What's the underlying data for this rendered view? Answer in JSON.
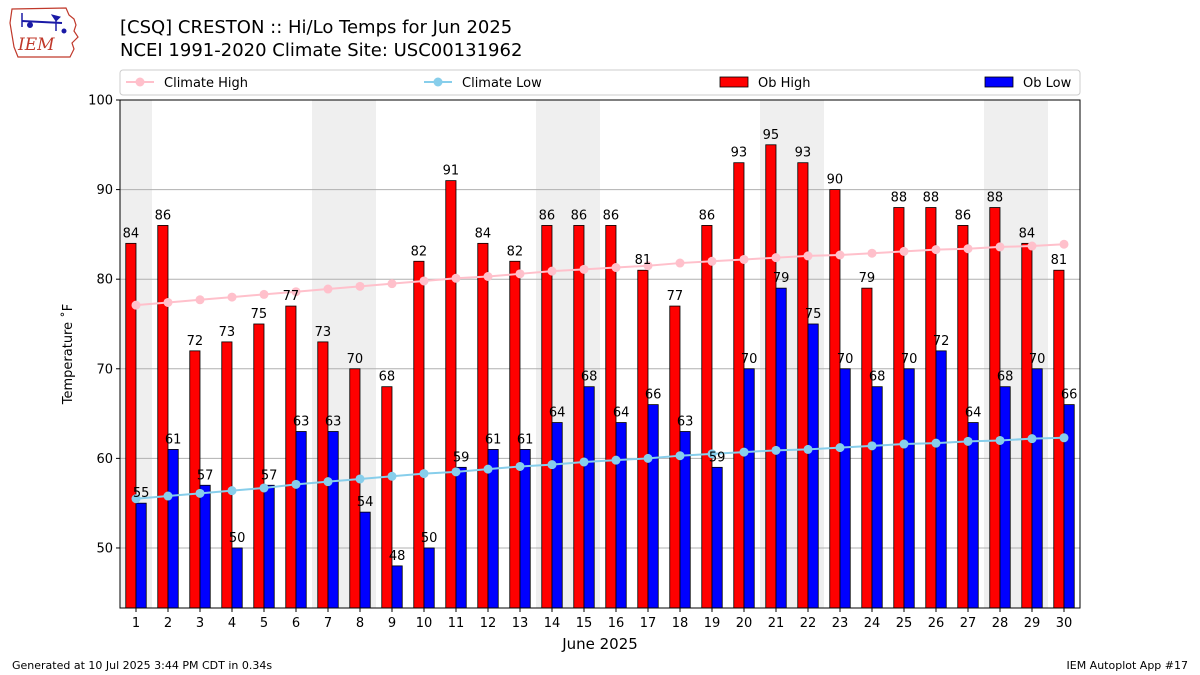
{
  "page": {
    "title_line1": "[CSQ] CRESTON :: Hi/Lo Temps for Jun 2025",
    "title_line2": "NCEI 1991-2020 Climate Site: USC00131962",
    "footer_left": "Generated at 10 Jul 2025 3:44 PM CDT in 0.34s",
    "footer_right": "IEM Autoplot App #17",
    "logo_text": "IEM"
  },
  "chart_data": {
    "type": "bar",
    "xlabel": "June 2025",
    "ylabel": "Temperature ˚F",
    "ylim": [
      43.3,
      100
    ],
    "yticks": [
      50,
      60,
      70,
      80,
      90,
      100
    ],
    "grid": true,
    "legend_placement": "top",
    "weekend_shading_days": [
      1,
      7,
      8,
      14,
      15,
      21,
      22,
      28,
      29
    ],
    "categories": [
      1,
      2,
      3,
      4,
      5,
      6,
      7,
      8,
      9,
      10,
      11,
      12,
      13,
      14,
      15,
      16,
      17,
      18,
      19,
      20,
      21,
      22,
      23,
      24,
      25,
      26,
      27,
      28,
      29,
      30
    ],
    "series": [
      {
        "name": "Ob High",
        "kind": "bar",
        "color": "#ff0000",
        "values": [
          84,
          86,
          72,
          73,
          75,
          77,
          73,
          70,
          68,
          82,
          91,
          84,
          82,
          86,
          86,
          86,
          81,
          77,
          86,
          93,
          95,
          93,
          90,
          79,
          88,
          88,
          86,
          88,
          84,
          81
        ]
      },
      {
        "name": "Ob Low",
        "kind": "bar",
        "color": "#0000ff",
        "values": [
          55,
          61,
          57,
          50,
          57,
          63,
          63,
          54,
          48,
          50,
          59,
          61,
          61,
          64,
          68,
          64,
          66,
          63,
          59,
          70,
          79,
          75,
          70,
          68,
          70,
          72,
          64,
          68,
          70,
          66
        ]
      },
      {
        "name": "Climate High",
        "kind": "line",
        "color": "#ffc0cb",
        "values": [
          77.1,
          77.4,
          77.7,
          78.0,
          78.3,
          78.6,
          78.9,
          79.2,
          79.5,
          79.8,
          80.1,
          80.3,
          80.6,
          80.9,
          81.1,
          81.3,
          81.5,
          81.8,
          82.0,
          82.2,
          82.4,
          82.6,
          82.7,
          82.9,
          83.1,
          83.3,
          83.4,
          83.6,
          83.7,
          83.9
        ]
      },
      {
        "name": "Climate Low",
        "kind": "line",
        "color": "#87ceeb",
        "values": [
          55.5,
          55.8,
          56.1,
          56.4,
          56.7,
          57.1,
          57.4,
          57.7,
          58.0,
          58.3,
          58.5,
          58.8,
          59.1,
          59.3,
          59.6,
          59.8,
          60.0,
          60.3,
          60.5,
          60.7,
          60.9,
          61.0,
          61.2,
          61.4,
          61.6,
          61.7,
          61.9,
          62.0,
          62.2,
          62.3
        ]
      }
    ],
    "legend": [
      "Climate High",
      "Climate Low",
      "Ob High",
      "Ob Low"
    ]
  }
}
